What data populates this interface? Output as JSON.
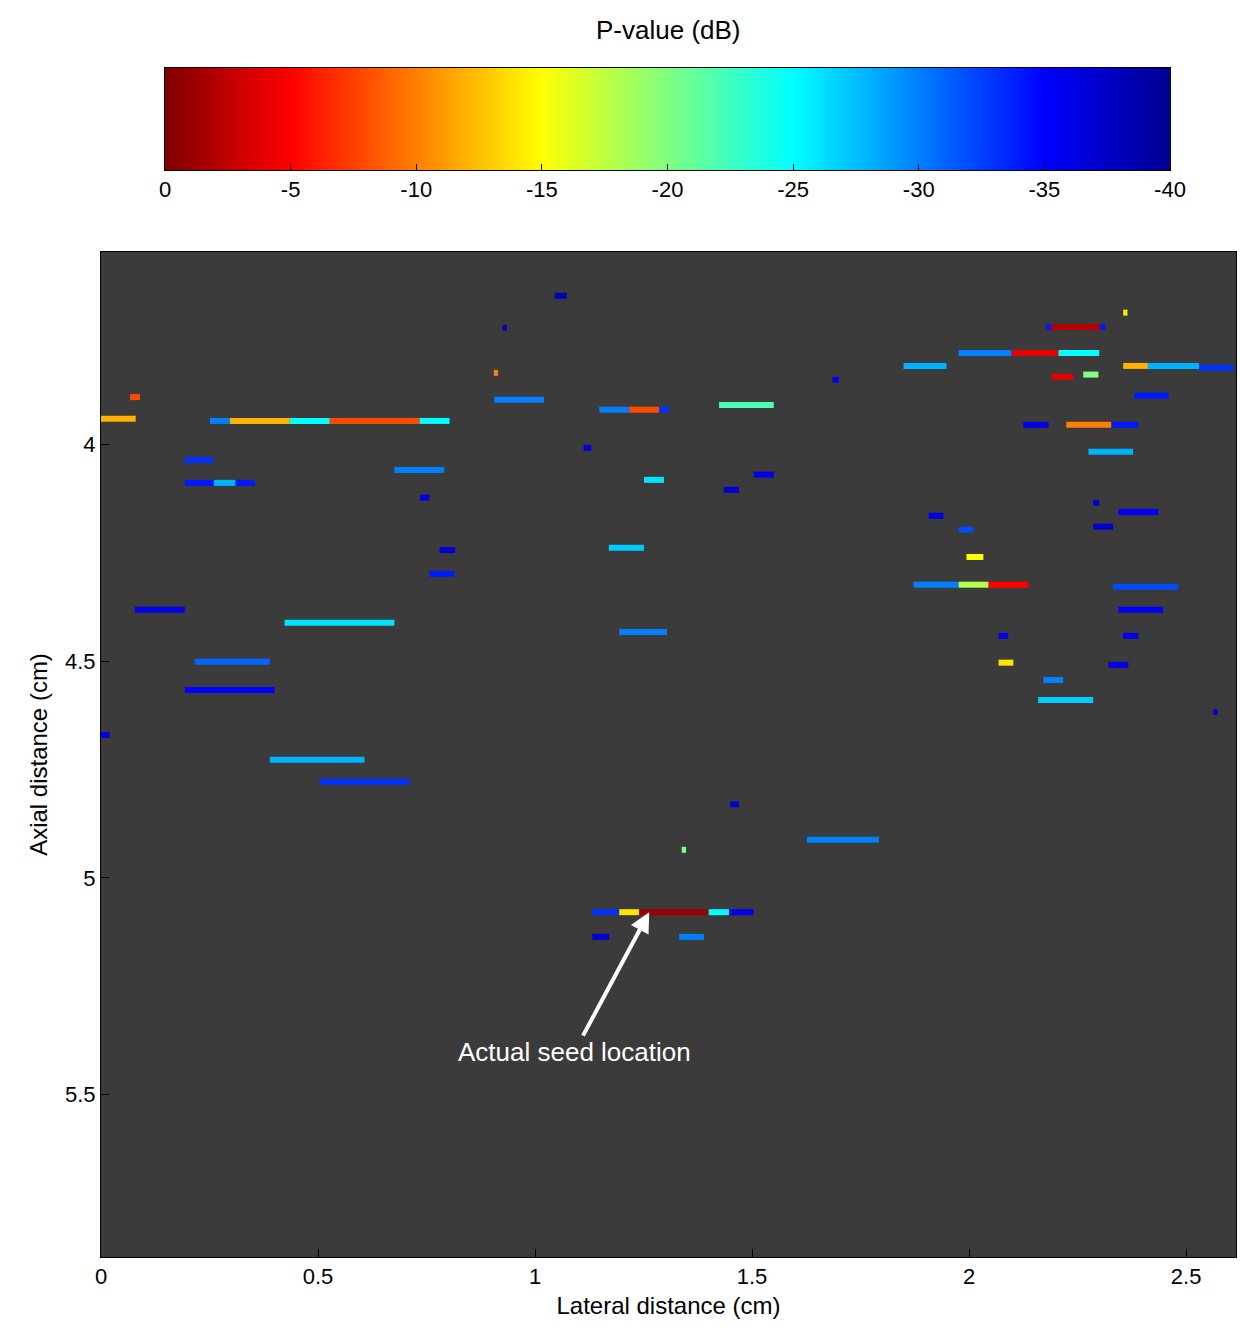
{
  "chart_data": {
    "type": "segments",
    "xlabel": "Lateral distance (cm)",
    "ylabel": "Axial distance (cm)",
    "xlim": [
      0,
      2.615
    ],
    "ylim": [
      5.875,
      3.555
    ],
    "xticks": [
      0,
      0.5,
      1,
      1.5,
      2,
      2.5
    ],
    "yticks": [
      4,
      4.5,
      5,
      5.5
    ],
    "colorbar": {
      "title": "P-value (dB)",
      "range": [
        0,
        -40
      ],
      "ticks": [
        0,
        -5,
        -10,
        -15,
        -20,
        -25,
        -30,
        -35,
        -40
      ]
    },
    "annotations": [
      {
        "text": "Actual seed location",
        "x": 1.263,
        "y": 5.079
      }
    ],
    "segments": [
      {
        "x": [
          1.045,
          1.073
        ],
        "y": 3.656,
        "p": -38
      },
      {
        "x": [
          0.925,
          0.935
        ],
        "y": 3.73,
        "p": -38
      },
      {
        "x": [
          2.355,
          2.365
        ],
        "y": 3.695,
        "p": -14
      },
      {
        "x": [
          2.177,
          2.19
        ],
        "y": 3.728,
        "p": -34
      },
      {
        "x": [
          2.19,
          2.302
        ],
        "y": 3.728,
        "p": -2
      },
      {
        "x": [
          2.302,
          2.314
        ],
        "y": 3.728,
        "p": -34
      },
      {
        "x": [
          1.976,
          2.098
        ],
        "y": 3.788,
        "p": -30
      },
      {
        "x": [
          2.098,
          2.206
        ],
        "y": 3.788,
        "p": -4
      },
      {
        "x": [
          2.206,
          2.3
        ],
        "y": 3.788,
        "p": -25
      },
      {
        "x": [
          1.849,
          1.948
        ],
        "y": 3.818,
        "p": -28
      },
      {
        "x": [
          2.19,
          2.24
        ],
        "y": 3.843,
        "p": -4
      },
      {
        "x": [
          2.263,
          2.298
        ],
        "y": 3.838,
        "p": -20
      },
      {
        "x": [
          2.355,
          2.412
        ],
        "y": 3.818,
        "p": -12
      },
      {
        "x": [
          2.412,
          2.53
        ],
        "y": 3.818,
        "p": -28
      },
      {
        "x": [
          2.53,
          2.61
        ],
        "y": 3.822,
        "p": -33
      },
      {
        "x": [
          2.38,
          2.46
        ],
        "y": 3.887,
        "p": -34
      },
      {
        "x": [
          2.125,
          2.183
        ],
        "y": 3.954,
        "p": -36
      },
      {
        "x": [
          2.224,
          2.328
        ],
        "y": 3.954,
        "p": -10
      },
      {
        "x": [
          2.328,
          2.39
        ],
        "y": 3.954,
        "p": -34
      },
      {
        "x": [
          2.275,
          2.378
        ],
        "y": 4.016,
        "p": -28
      },
      {
        "x": [
          0.0,
          0.08
        ],
        "y": 3.94,
        "p": -12
      },
      {
        "x": [
          0.067,
          0.09
        ],
        "y": 3.89,
        "p": -8
      },
      {
        "x": [
          0.251,
          0.297
        ],
        "y": 3.945,
        "p": -30
      },
      {
        "x": [
          0.297,
          0.435
        ],
        "y": 3.945,
        "p": -12
      },
      {
        "x": [
          0.435,
          0.527
        ],
        "y": 3.945,
        "p": -25
      },
      {
        "x": [
          0.527,
          0.734
        ],
        "y": 3.945,
        "p": -8
      },
      {
        "x": [
          0.734,
          0.803
        ],
        "y": 3.945,
        "p": -25
      },
      {
        "x": [
          0.906,
          1.021
        ],
        "y": 3.896,
        "p": -30
      },
      {
        "x": [
          0.905,
          0.915
        ],
        "y": 3.834,
        "p": -10
      },
      {
        "x": [
          1.148,
          1.217
        ],
        "y": 3.919,
        "p": -30
      },
      {
        "x": [
          1.217,
          1.286
        ],
        "y": 3.919,
        "p": -8
      },
      {
        "x": [
          1.286,
          1.309
        ],
        "y": 3.919,
        "p": -33
      },
      {
        "x": [
          1.424,
          1.55
        ],
        "y": 3.908,
        "p": -22
      },
      {
        "x": [
          1.685,
          1.7
        ],
        "y": 3.85,
        "p": -36
      },
      {
        "x": [
          0.193,
          0.258
        ],
        "y": 4.035,
        "p": -33
      },
      {
        "x": [
          0.193,
          0.26
        ],
        "y": 4.088,
        "p": -34
      },
      {
        "x": [
          0.26,
          0.31
        ],
        "y": 4.088,
        "p": -28
      },
      {
        "x": [
          0.31,
          0.354
        ],
        "y": 4.088,
        "p": -34
      },
      {
        "x": [
          0.676,
          0.791
        ],
        "y": 4.058,
        "p": -30
      },
      {
        "x": [
          0.735,
          0.757
        ],
        "y": 4.122,
        "p": -36
      },
      {
        "x": [
          1.251,
          1.297
        ],
        "y": 4.081,
        "p": -26
      },
      {
        "x": [
          1.435,
          1.47
        ],
        "y": 4.104,
        "p": -37
      },
      {
        "x": [
          1.504,
          1.55
        ],
        "y": 4.069,
        "p": -36
      },
      {
        "x": [
          1.112,
          1.13
        ],
        "y": 4.007,
        "p": -37
      },
      {
        "x": [
          0.78,
          0.816
        ],
        "y": 4.243,
        "p": -37
      },
      {
        "x": [
          1.17,
          1.251
        ],
        "y": 4.238,
        "p": -27
      },
      {
        "x": [
          0.757,
          0.814
        ],
        "y": 4.298,
        "p": -34
      },
      {
        "x": [
          0.423,
          0.676
        ],
        "y": 4.411,
        "p": -26
      },
      {
        "x": [
          1.194,
          1.304
        ],
        "y": 4.432,
        "p": -30
      },
      {
        "x": [
          0.216,
          0.389
        ],
        "y": 4.501,
        "p": -31
      },
      {
        "x": [
          0.193,
          0.4
        ],
        "y": 4.566,
        "p": -35
      },
      {
        "x": [
          0.078,
          0.193
        ],
        "y": 4.381,
        "p": -36
      },
      {
        "x": [
          0.0,
          0.02
        ],
        "y": 4.67,
        "p": -36
      },
      {
        "x": [
          0.389,
          0.607
        ],
        "y": 4.727,
        "p": -28
      },
      {
        "x": [
          0.504,
          0.711
        ],
        "y": 4.778,
        "p": -33
      },
      {
        "x": [
          1.45,
          1.47
        ],
        "y": 4.83,
        "p": -37
      },
      {
        "x": [
          1.626,
          1.792
        ],
        "y": 4.912,
        "p": -30
      },
      {
        "x": [
          1.338,
          1.348
        ],
        "y": 4.935,
        "p": -20
      },
      {
        "x": [
          1.132,
          1.194
        ],
        "y": 5.079,
        "p": -33
      },
      {
        "x": [
          1.194,
          1.24
        ],
        "y": 5.079,
        "p": -14
      },
      {
        "x": [
          1.24,
          1.4
        ],
        "y": 5.079,
        "p": -1
      },
      {
        "x": [
          1.4,
          1.447
        ],
        "y": 5.079,
        "p": -25
      },
      {
        "x": [
          1.447,
          1.504
        ],
        "y": 5.079,
        "p": -36
      },
      {
        "x": [
          1.132,
          1.171
        ],
        "y": 5.136,
        "p": -37
      },
      {
        "x": [
          1.332,
          1.389
        ],
        "y": 5.136,
        "p": -30
      },
      {
        "x": [
          1.907,
          1.941
        ],
        "y": 4.164,
        "p": -36
      },
      {
        "x": [
          1.976,
          2.01
        ],
        "y": 4.196,
        "p": -32
      },
      {
        "x": [
          1.994,
          2.033
        ],
        "y": 4.259,
        "p": -15
      },
      {
        "x": [
          2.286,
          2.3
        ],
        "y": 4.134,
        "p": -37
      },
      {
        "x": [
          2.344,
          2.436
        ],
        "y": 4.155,
        "p": -35
      },
      {
        "x": [
          2.286,
          2.332
        ],
        "y": 4.189,
        "p": -37
      },
      {
        "x": [
          1.872,
          1.976
        ],
        "y": 4.323,
        "p": -30
      },
      {
        "x": [
          1.976,
          2.045
        ],
        "y": 4.323,
        "p": -18
      },
      {
        "x": [
          2.045,
          2.137
        ],
        "y": 4.323,
        "p": -5
      },
      {
        "x": [
          2.332,
          2.482
        ],
        "y": 4.328,
        "p": -32
      },
      {
        "x": [
          2.344,
          2.447
        ],
        "y": 4.381,
        "p": -35
      },
      {
        "x": [
          2.068,
          2.09
        ],
        "y": 4.441,
        "p": -36
      },
      {
        "x": [
          2.355,
          2.39
        ],
        "y": 4.441,
        "p": -36
      },
      {
        "x": [
          2.068,
          2.102
        ],
        "y": 4.503,
        "p": -14
      },
      {
        "x": [
          2.171,
          2.217
        ],
        "y": 4.543,
        "p": -30
      },
      {
        "x": [
          2.321,
          2.367
        ],
        "y": 4.508,
        "p": -36
      },
      {
        "x": [
          2.159,
          2.286
        ],
        "y": 4.589,
        "p": -27
      },
      {
        "x": [
          2.563,
          2.573
        ],
        "y": 4.617,
        "p": -37
      }
    ]
  }
}
